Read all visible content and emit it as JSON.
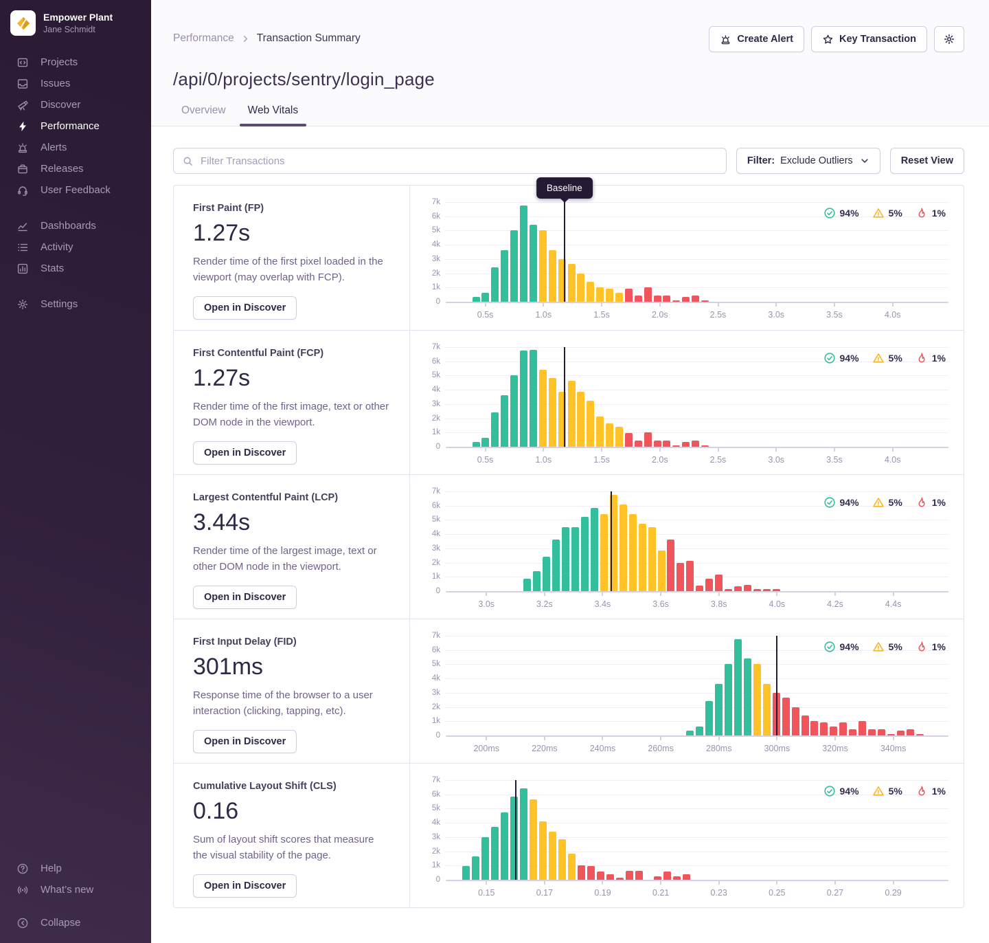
{
  "sidebar": {
    "org": "Empower Plant",
    "user": "Jane Schmidt",
    "groups": [
      [
        {
          "label": "Projects",
          "icon": "projects-icon",
          "active": false
        },
        {
          "label": "Issues",
          "icon": "issues-icon",
          "active": false
        },
        {
          "label": "Discover",
          "icon": "discover-icon",
          "active": false
        },
        {
          "label": "Performance",
          "icon": "performance-icon",
          "active": true
        },
        {
          "label": "Alerts",
          "icon": "alerts-icon",
          "active": false
        },
        {
          "label": "Releases",
          "icon": "releases-icon",
          "active": false
        },
        {
          "label": "User Feedback",
          "icon": "user-feedback-icon",
          "active": false
        }
      ],
      [
        {
          "label": "Dashboards",
          "icon": "dashboards-icon",
          "active": false
        },
        {
          "label": "Activity",
          "icon": "activity-icon",
          "active": false
        },
        {
          "label": "Stats",
          "icon": "stats-icon",
          "active": false
        }
      ],
      [
        {
          "label": "Settings",
          "icon": "settings-icon",
          "active": false
        }
      ]
    ],
    "footer": [
      {
        "label": "Help",
        "icon": "help-icon"
      },
      {
        "label": "What’s new",
        "icon": "whats-new-icon"
      }
    ],
    "collapse_label": "Collapse"
  },
  "header": {
    "breadcrumb": {
      "parent": "Performance",
      "current": "Transaction Summary"
    },
    "actions": {
      "create_alert": "Create Alert",
      "key_transaction": "Key Transaction"
    },
    "title": "/api/0/projects/sentry/login_page",
    "tabs": [
      {
        "label": "Overview",
        "active": false
      },
      {
        "label": "Web Vitals",
        "active": true
      }
    ]
  },
  "filter_bar": {
    "search_placeholder": "Filter Transactions",
    "filter_label": "Filter:",
    "filter_value": "Exclude Outliers",
    "reset_label": "Reset View"
  },
  "colors": {
    "good": "#33bf9b",
    "meh": "#ffc227",
    "poor": "#f0555b",
    "baseline": "#241a32"
  },
  "chart_data": [
    {
      "type": "bar",
      "name": "First Paint (FP)",
      "value": "1.27s",
      "description": "Render time of the first pixel loaded in the viewport (may overlap with FCP).",
      "button": "Open in Discover",
      "legend": {
        "good": "94%",
        "meh": "5%",
        "poor": "1%"
      },
      "y_axis": {
        "max": 7000,
        "ticks": [
          "0",
          "1k",
          "2k",
          "3k",
          "4k",
          "5k",
          "6k",
          "7k"
        ]
      },
      "x_axis": {
        "min": 0.16,
        "max": 4.48,
        "ticks": [
          0.5,
          1.0,
          1.5,
          2.0,
          2.5,
          3.0,
          3.5,
          4.0
        ],
        "tick_labels": [
          "0.5s",
          "1.0s",
          "1.5s",
          "2.0s",
          "2.5s",
          "3.0s",
          "3.5s",
          "4.0s"
        ]
      },
      "baseline": {
        "value": 1.18,
        "label": "Baseline"
      },
      "bars": {
        "start": 0.42,
        "step": 0.082,
        "segments": [
          {
            "level": "good",
            "values": [
              350,
              650,
              2400,
              3600,
              5000,
              6750,
              5400
            ]
          },
          {
            "level": "meh",
            "values": [
              5000,
              3600,
              3000,
              2650,
              2000,
              1400,
              1000,
              900,
              650
            ]
          },
          {
            "level": "poor",
            "values": [
              900,
              450,
              1000,
              450,
              450,
              120,
              350,
              450,
              100
            ]
          }
        ]
      }
    },
    {
      "type": "bar",
      "name": "First Contentful Paint (FCP)",
      "value": "1.27s",
      "description": "Render time of the first image, text or other DOM node in the viewport.",
      "button": "Open in Discover",
      "legend": {
        "good": "94%",
        "meh": "5%",
        "poor": "1%"
      },
      "y_axis": {
        "max": 7000,
        "ticks": [
          "0",
          "1k",
          "2k",
          "3k",
          "4k",
          "5k",
          "6k",
          "7k"
        ]
      },
      "x_axis": {
        "min": 0.16,
        "max": 4.48,
        "ticks": [
          0.5,
          1.0,
          1.5,
          2.0,
          2.5,
          3.0,
          3.5,
          4.0
        ],
        "tick_labels": [
          "0.5s",
          "1.0s",
          "1.5s",
          "2.0s",
          "2.5s",
          "3.0s",
          "3.5s",
          "4.0s"
        ]
      },
      "baseline": {
        "value": 1.18
      },
      "bars": {
        "start": 0.42,
        "step": 0.082,
        "segments": [
          {
            "level": "good",
            "values": [
              350,
              650,
              2400,
              3600,
              5000,
              6750,
              6800
            ]
          },
          {
            "level": "meh",
            "values": [
              5400,
              4850,
              3850,
              4650,
              3850,
              3250,
              2150,
              1650,
              1400
            ]
          },
          {
            "level": "poor",
            "values": [
              950,
              450,
              1000,
              450,
              450,
              120,
              350,
              450,
              120
            ]
          }
        ]
      }
    },
    {
      "type": "bar",
      "name": "Largest Contentful Paint (LCP)",
      "value": "3.44s",
      "description": "Render time of the largest image, text or other DOM node in the viewport.",
      "button": "Open in Discover",
      "legend": {
        "good": "94%",
        "meh": "5%",
        "poor": "1%"
      },
      "y_axis": {
        "max": 7000,
        "ticks": [
          "0",
          "1k",
          "2k",
          "3k",
          "4k",
          "5k",
          "6k",
          "7k"
        ]
      },
      "x_axis": {
        "min": 2.86,
        "max": 4.59,
        "ticks": [
          3.0,
          3.2,
          3.4,
          3.6,
          3.8,
          4.0,
          4.2,
          4.4
        ],
        "tick_labels": [
          "3.0s",
          "3.2s",
          "3.4s",
          "3.6s",
          "3.8s",
          "4.0s",
          "4.2s",
          "4.4s"
        ]
      },
      "baseline": {
        "value": 3.43
      },
      "bars": {
        "start": 3.14,
        "step": 0.033,
        "segments": [
          {
            "level": "good",
            "values": [
              850,
              1400,
              2400,
              3600,
              4500,
              4500,
              5200,
              5850
            ]
          },
          {
            "level": "meh",
            "values": [
              5400,
              6750,
              6100,
              5400,
              4750,
              4500,
              2850
            ]
          },
          {
            "level": "poor",
            "values": [
              3600,
              2000,
              2150,
              400,
              850,
              1150,
              150,
              350,
              450,
              150,
              150,
              150
            ]
          }
        ]
      }
    },
    {
      "type": "bar",
      "name": "First Input Delay (FID)",
      "value": "301ms",
      "description": "Response time of the browser to a user interaction (clicking, tapping, etc).",
      "button": "Open in Discover",
      "legend": {
        "good": "94%",
        "meh": "5%",
        "poor": "1%"
      },
      "y_axis": {
        "max": 7000,
        "ticks": [
          "0",
          "1k",
          "2k",
          "3k",
          "4k",
          "5k",
          "6k",
          "7k"
        ]
      },
      "x_axis": {
        "min": 186,
        "max": 359,
        "ticks": [
          200,
          220,
          240,
          260,
          280,
          300,
          320,
          340
        ],
        "tick_labels": [
          "200ms",
          "220ms",
          "240ms",
          "260ms",
          "280ms",
          "300ms",
          "320ms",
          "340ms"
        ]
      },
      "baseline": {
        "value": 300
      },
      "bars": {
        "start": 270,
        "step": 3.3,
        "segments": [
          {
            "level": "good",
            "values": [
              350,
              650,
              2400,
              3600,
              5000,
              6750,
              5400
            ]
          },
          {
            "level": "meh",
            "values": [
              5000,
              3600
            ]
          },
          {
            "level": "poor",
            "values": [
              3000,
              2650,
              2000,
              1400,
              1000,
              900,
              650,
              900,
              450,
              1000,
              450,
              450,
              120,
              350,
              450,
              120
            ]
          }
        ]
      }
    },
    {
      "type": "bar",
      "name": "Cumulative Layout Shift (CLS)",
      "value": "0.16",
      "description": "Sum of layout shift scores that measure the visual stability of the page.",
      "button": "Open in Discover",
      "legend": {
        "good": "94%",
        "meh": "5%",
        "poor": "1%"
      },
      "y_axis": {
        "max": 7000,
        "ticks": [
          "0",
          "1k",
          "2k",
          "3k",
          "4k",
          "5k",
          "6k",
          "7k"
        ]
      },
      "x_axis": {
        "min": 0.136,
        "max": 0.309,
        "ticks": [
          0.15,
          0.17,
          0.19,
          0.21,
          0.23,
          0.25,
          0.27,
          0.29
        ],
        "tick_labels": [
          "0.15",
          "0.17",
          "0.19",
          "0.21",
          "0.23",
          "0.25",
          "0.27",
          "0.29"
        ]
      },
      "baseline": {
        "value": 0.16
      },
      "bars": {
        "start": 0.143,
        "step": 0.0033,
        "segments": [
          {
            "level": "good",
            "values": [
              950,
              1650,
              3000,
              3700,
              4750,
              5850,
              6400
            ]
          },
          {
            "level": "meh",
            "values": [
              5650,
              4100,
              3400,
              2850,
              1850
            ]
          },
          {
            "level": "poor",
            "values": [
              1000,
              950,
              600,
              400,
              150,
              650,
              650,
              null,
              250,
              600,
              250,
              400
            ]
          }
        ]
      }
    }
  ]
}
